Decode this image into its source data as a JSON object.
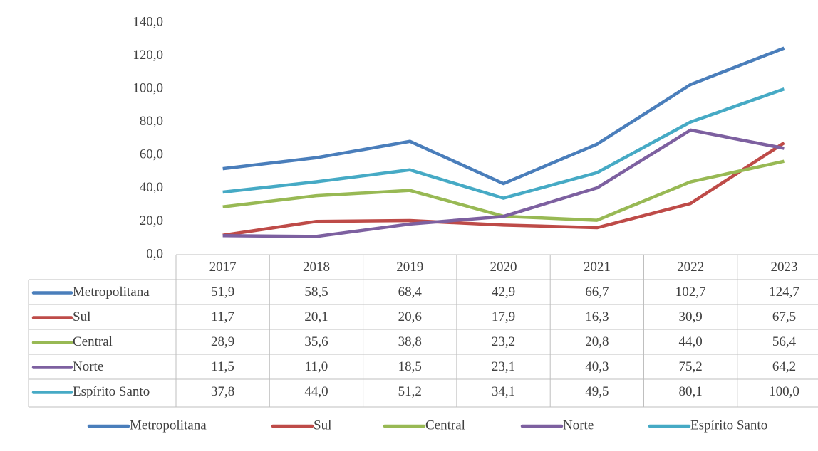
{
  "chart_data": {
    "type": "line",
    "categories": [
      "2017",
      "2018",
      "2019",
      "2020",
      "2021",
      "2022",
      "2023"
    ],
    "series": [
      {
        "name": "Metropolitana",
        "color": "#4a7ebb",
        "values": [
          51.9,
          58.5,
          68.4,
          42.9,
          66.7,
          102.7,
          124.7
        ],
        "value_labels": [
          "51,9",
          "58,5",
          "68,4",
          "42,9",
          "66,7",
          "102,7",
          "124,7"
        ]
      },
      {
        "name": "Sul",
        "color": "#be4b48",
        "values": [
          11.7,
          20.1,
          20.6,
          17.9,
          16.3,
          30.9,
          67.5
        ],
        "value_labels": [
          "11,7",
          "20,1",
          "20,6",
          "17,9",
          "16,3",
          "30,9",
          "67,5"
        ]
      },
      {
        "name": "Central",
        "color": "#98b954",
        "values": [
          28.9,
          35.6,
          38.8,
          23.2,
          20.8,
          44.0,
          56.4
        ],
        "value_labels": [
          "28,9",
          "35,6",
          "38,8",
          "23,2",
          "20,8",
          "44,0",
          "56,4"
        ]
      },
      {
        "name": "Norte",
        "color": "#7d60a0",
        "values": [
          11.5,
          11.0,
          18.5,
          23.1,
          40.3,
          75.2,
          64.2
        ],
        "value_labels": [
          "11,5",
          "11,0",
          "18,5",
          "23,1",
          "40,3",
          "75,2",
          "64,2"
        ]
      },
      {
        "name": "Espírito Santo",
        "color": "#46aac5",
        "values": [
          37.8,
          44.0,
          51.2,
          34.1,
          49.5,
          80.1,
          100.0
        ],
        "value_labels": [
          "37,8",
          "44,0",
          "51,2",
          "34,1",
          "49,5",
          "80,1",
          "100,0"
        ]
      }
    ],
    "ylim": [
      0,
      140
    ],
    "yticks": [
      {
        "value": 0,
        "label": "0,0"
      },
      {
        "value": 20,
        "label": "20,0"
      },
      {
        "value": 40,
        "label": "40,0"
      },
      {
        "value": 60,
        "label": "60,0"
      },
      {
        "value": 80,
        "label": "80,0"
      },
      {
        "value": 100,
        "label": "100,0"
      },
      {
        "value": 120,
        "label": "120,0"
      },
      {
        "value": 140,
        "label": "140,0"
      }
    ],
    "legend": "bottom"
  }
}
